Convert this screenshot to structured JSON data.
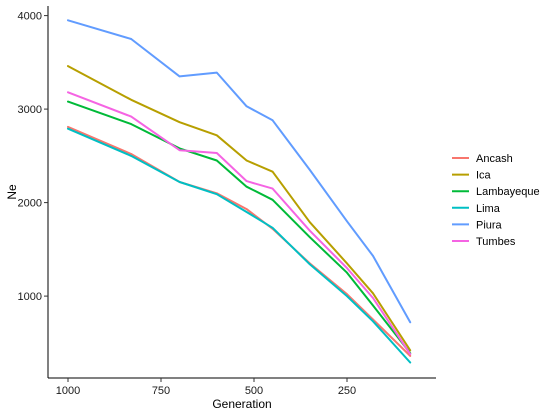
{
  "chart_data": {
    "type": "line",
    "xlabel": "Generation",
    "ylabel": "Ne",
    "x_reversed": true,
    "xlim": [
      1000,
      0
    ],
    "ylim": [
      0,
      4000
    ],
    "x_ticks": [
      1000,
      750,
      500,
      250
    ],
    "x_tick_labels": [
      "1000",
      "750",
      "500",
      "250"
    ],
    "y_ticks": [
      1000,
      2000,
      3000,
      4000
    ],
    "y_tick_labels": [
      "1000",
      "2000",
      "3000",
      "4000"
    ],
    "grid": false,
    "legend_position": "right",
    "series": [
      {
        "name": "Ancash",
        "color": "#F8766D",
        "x": [
          1000,
          830,
          700,
          600,
          520,
          450,
          350,
          250,
          180,
          80
        ],
        "y": [
          2810,
          2520,
          2220,
          2100,
          1930,
          1720,
          1350,
          1020,
          750,
          360
        ]
      },
      {
        "name": "Ica",
        "color": "#B79F00",
        "x": [
          1000,
          830,
          700,
          600,
          520,
          450,
          350,
          250,
          180,
          80
        ],
        "y": [
          3460,
          3100,
          2860,
          2720,
          2450,
          2330,
          1790,
          1350,
          1030,
          420
        ]
      },
      {
        "name": "Lambayeque",
        "color": "#00BA38",
        "x": [
          1000,
          830,
          700,
          600,
          520,
          450,
          350,
          250,
          180,
          80
        ],
        "y": [
          3080,
          2840,
          2580,
          2450,
          2170,
          2030,
          1630,
          1250,
          900,
          390
        ]
      },
      {
        "name": "Lima",
        "color": "#00BFC4",
        "x": [
          1000,
          830,
          700,
          600,
          520,
          450,
          350,
          250,
          180,
          80
        ],
        "y": [
          2790,
          2500,
          2220,
          2090,
          1900,
          1730,
          1340,
          1000,
          730,
          290
        ]
      },
      {
        "name": "Piura",
        "color": "#619CFF",
        "x": [
          1000,
          830,
          700,
          600,
          520,
          450,
          350,
          250,
          180,
          80
        ],
        "y": [
          3950,
          3750,
          3350,
          3390,
          3030,
          2880,
          2350,
          1800,
          1430,
          720
        ]
      },
      {
        "name": "Tumbes",
        "color": "#F564E3",
        "x": [
          1000,
          830,
          700,
          600,
          520,
          450,
          350,
          250,
          180,
          80
        ],
        "y": [
          3180,
          2920,
          2560,
          2530,
          2230,
          2150,
          1700,
          1300,
          980,
          380
        ]
      }
    ]
  }
}
